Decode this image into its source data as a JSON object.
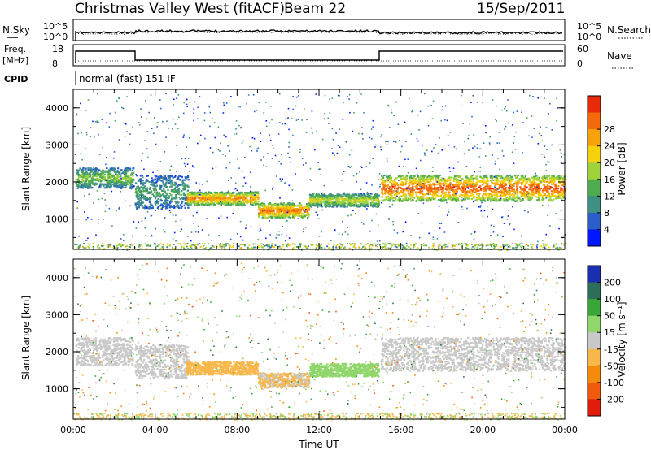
{
  "header": {
    "station": "Christmas Valley West (fitACF)",
    "beam": "Beam 22",
    "date": "15/Sep/2011"
  },
  "params": {
    "nsky_label": "N.Sky",
    "nsearch_label": "N.Search",
    "freq_label_1": "Freq.",
    "freq_label_2": "[MHz]",
    "nave_label": "Nave",
    "cpid_label": "CPID",
    "cpid_value": "normal (fast) 151 IF",
    "noise_ticks": [
      "10^5",
      "10^0"
    ],
    "freq_ticks": [
      "18",
      "8"
    ],
    "nave_ticks": [
      "60",
      "0"
    ]
  },
  "chart_data": [
    {
      "type": "heatmap",
      "name": "power-panel",
      "xlabel": "",
      "ylabel": "Slant Range [km]",
      "xlim": [
        0,
        24
      ],
      "ylim": [
        180,
        4500
      ],
      "yticks": [
        "1000",
        "2000",
        "3000",
        "4000"
      ],
      "colorbar": {
        "label": "Power [dB]",
        "ticks": [
          "4",
          "8",
          "12",
          "16",
          "20",
          "24",
          "28"
        ],
        "colors": [
          "#0018ff",
          "#2a5fc9",
          "#3e8f84",
          "#4fab50",
          "#9fd23a",
          "#f6d10e",
          "#f7a20a",
          "#f46a0a",
          "#e82a0a"
        ]
      },
      "bands": [
        {
          "x": [
            0.1,
            2.9
          ],
          "y": [
            1850,
            2400
          ],
          "level": 0.45
        },
        {
          "x": [
            3.0,
            5.6
          ],
          "y": [
            1300,
            2200
          ],
          "level": 0.35
        },
        {
          "x": [
            5.5,
            9.0
          ],
          "y": [
            1400,
            1750
          ],
          "level": 0.75
        },
        {
          "x": [
            9.0,
            11.5
          ],
          "y": [
            1050,
            1450
          ],
          "level": 0.8
        },
        {
          "x": [
            11.5,
            14.9
          ],
          "y": [
            1350,
            1700
          ],
          "level": 0.55
        },
        {
          "x": [
            15.0,
            24.0
          ],
          "y": [
            1500,
            2200
          ],
          "level": 0.85
        }
      ]
    },
    {
      "type": "heatmap",
      "name": "velocity-panel",
      "xlabel": "Time UT",
      "ylabel": "Slant Range [km]",
      "xlim": [
        0,
        24
      ],
      "ylim": [
        180,
        4500
      ],
      "xticks": [
        "00:00",
        "04:00",
        "08:00",
        "12:00",
        "16:00",
        "20:00",
        "00:00"
      ],
      "yticks": [
        "1000",
        "2000",
        "3000",
        "4000"
      ],
      "colorbar": {
        "label": "Velocity [m s⁻¹]",
        "ticks": [
          "200",
          "100",
          "50",
          "15",
          "-15",
          "-50",
          "-100",
          "-200"
        ],
        "colors": [
          "#1a2fb0",
          "#2d6e5a",
          "#3aa63a",
          "#8fd66b",
          "#c8c8c8",
          "#f7b74a",
          "#f48a0a",
          "#f05a0a",
          "#e01c0a"
        ]
      },
      "bands": [
        {
          "x": [
            0.1,
            2.9
          ],
          "y": [
            1650,
            2400
          ],
          "value": 0
        },
        {
          "x": [
            3.0,
            5.6
          ],
          "y": [
            1300,
            2200
          ],
          "value": 0
        },
        {
          "x": [
            5.5,
            9.0
          ],
          "y": [
            1400,
            1750
          ],
          "value": -30
        },
        {
          "x": [
            9.0,
            11.5
          ],
          "y": [
            1050,
            1450
          ],
          "value": -20
        },
        {
          "x": [
            11.5,
            14.9
          ],
          "y": [
            1350,
            1700
          ],
          "value": 30
        },
        {
          "x": [
            15.0,
            24.0
          ],
          "y": [
            1500,
            2400
          ],
          "value": 0
        }
      ]
    }
  ]
}
